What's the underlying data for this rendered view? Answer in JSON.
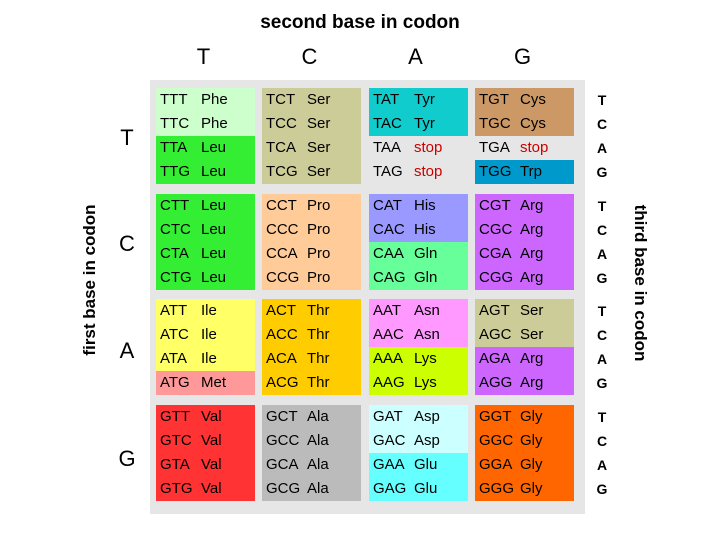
{
  "header": {
    "title": "second base in codon",
    "left_title": "first base in codon",
    "right_title": "third base in codon",
    "second_bases": [
      "T",
      "C",
      "A",
      "G"
    ],
    "first_bases": [
      "T",
      "C",
      "A",
      "G"
    ],
    "third_bases": [
      "T",
      "C",
      "A",
      "G"
    ]
  },
  "colors": {
    "grid_background": "#e6e6e6",
    "stop_text": "#cc0000"
  },
  "rows": [
    {
      "first": "T",
      "blocks": [
        {
          "cells": [
            {
              "codon": "TTT",
              "aa": "Phe",
              "bg": "#ccffcc"
            },
            {
              "codon": "TTC",
              "aa": "Phe",
              "bg": "#ccffcc"
            },
            {
              "codon": "TTA",
              "aa": "Leu",
              "bg": "#33ee33"
            },
            {
              "codon": "TTG",
              "aa": "Leu",
              "bg": "#33ee33"
            }
          ]
        },
        {
          "cells": [
            {
              "codon": "TCT",
              "aa": "Ser",
              "bg": "#cccc99"
            },
            {
              "codon": "TCC",
              "aa": "Ser",
              "bg": "#cccc99"
            },
            {
              "codon": "TCA",
              "aa": "Ser",
              "bg": "#cccc99"
            },
            {
              "codon": "TCG",
              "aa": "Ser",
              "bg": "#cccc99"
            }
          ]
        },
        {
          "cells": [
            {
              "codon": "TAT",
              "aa": "Tyr",
              "bg": "#11cccc"
            },
            {
              "codon": "TAC",
              "aa": "Tyr",
              "bg": "#11cccc"
            },
            {
              "codon": "TAA",
              "aa": "stop",
              "bg": "#e6e6e6",
              "stop": true
            },
            {
              "codon": "TAG",
              "aa": "stop",
              "bg": "#e6e6e6",
              "stop": true
            }
          ]
        },
        {
          "cells": [
            {
              "codon": "TGT",
              "aa": "Cys",
              "bg": "#cc9966"
            },
            {
              "codon": "TGC",
              "aa": "Cys",
              "bg": "#cc9966"
            },
            {
              "codon": "TGA",
              "aa": "stop",
              "bg": "#e6e6e6",
              "stop": true
            },
            {
              "codon": "TGG",
              "aa": "Trp",
              "bg": "#0099cc"
            }
          ]
        }
      ]
    },
    {
      "first": "C",
      "blocks": [
        {
          "cells": [
            {
              "codon": "CTT",
              "aa": "Leu",
              "bg": "#33ee33"
            },
            {
              "codon": "CTC",
              "aa": "Leu",
              "bg": "#33ee33"
            },
            {
              "codon": "CTA",
              "aa": "Leu",
              "bg": "#33ee33"
            },
            {
              "codon": "CTG",
              "aa": "Leu",
              "bg": "#33ee33"
            }
          ]
        },
        {
          "cells": [
            {
              "codon": "CCT",
              "aa": "Pro",
              "bg": "#ffcc99"
            },
            {
              "codon": "CCC",
              "aa": "Pro",
              "bg": "#ffcc99"
            },
            {
              "codon": "CCA",
              "aa": "Pro",
              "bg": "#ffcc99"
            },
            {
              "codon": "CCG",
              "aa": "Pro",
              "bg": "#ffcc99"
            }
          ]
        },
        {
          "cells": [
            {
              "codon": "CAT",
              "aa": "His",
              "bg": "#9999ff"
            },
            {
              "codon": "CAC",
              "aa": "His",
              "bg": "#9999ff"
            },
            {
              "codon": "CAA",
              "aa": "Gln",
              "bg": "#66ff99"
            },
            {
              "codon": "CAG",
              "aa": "Gln",
              "bg": "#66ff99"
            }
          ]
        },
        {
          "cells": [
            {
              "codon": "CGT",
              "aa": "Arg",
              "bg": "#cc66ff"
            },
            {
              "codon": "CGC",
              "aa": "Arg",
              "bg": "#cc66ff"
            },
            {
              "codon": "CGA",
              "aa": "Arg",
              "bg": "#cc66ff"
            },
            {
              "codon": "CGG",
              "aa": "Arg",
              "bg": "#cc66ff"
            }
          ]
        }
      ]
    },
    {
      "first": "A",
      "blocks": [
        {
          "cells": [
            {
              "codon": "ATT",
              "aa": "Ile",
              "bg": "#ffff66"
            },
            {
              "codon": "ATC",
              "aa": "Ile",
              "bg": "#ffff66"
            },
            {
              "codon": "ATA",
              "aa": "Ile",
              "bg": "#ffff66"
            },
            {
              "codon": "ATG",
              "aa": "Met",
              "bg": "#ff9999"
            }
          ]
        },
        {
          "cells": [
            {
              "codon": "ACT",
              "aa": "Thr",
              "bg": "#ffcc00"
            },
            {
              "codon": "ACC",
              "aa": "Thr",
              "bg": "#ffcc00"
            },
            {
              "codon": "ACA",
              "aa": "Thr",
              "bg": "#ffcc00"
            },
            {
              "codon": "ACG",
              "aa": "Thr",
              "bg": "#ffcc00"
            }
          ]
        },
        {
          "cells": [
            {
              "codon": "AAT",
              "aa": "Asn",
              "bg": "#ff99ff"
            },
            {
              "codon": "AAC",
              "aa": "Asn",
              "bg": "#ff99ff"
            },
            {
              "codon": "AAA",
              "aa": "Lys",
              "bg": "#ccff00"
            },
            {
              "codon": "AAG",
              "aa": "Lys",
              "bg": "#ccff00"
            }
          ]
        },
        {
          "cells": [
            {
              "codon": "AGT",
              "aa": "Ser",
              "bg": "#cccc99"
            },
            {
              "codon": "AGC",
              "aa": "Ser",
              "bg": "#cccc99"
            },
            {
              "codon": "AGA",
              "aa": "Arg",
              "bg": "#cc66ff"
            },
            {
              "codon": "AGG",
              "aa": "Arg",
              "bg": "#cc66ff"
            }
          ]
        }
      ]
    },
    {
      "first": "G",
      "blocks": [
        {
          "cells": [
            {
              "codon": "GTT",
              "aa": "Val",
              "bg": "#ff3333"
            },
            {
              "codon": "GTC",
              "aa": "Val",
              "bg": "#ff3333"
            },
            {
              "codon": "GTA",
              "aa": "Val",
              "bg": "#ff3333"
            },
            {
              "codon": "GTG",
              "aa": "Val",
              "bg": "#ff3333"
            }
          ]
        },
        {
          "cells": [
            {
              "codon": "GCT",
              "aa": "Ala",
              "bg": "#bbbbbb"
            },
            {
              "codon": "GCC",
              "aa": "Ala",
              "bg": "#bbbbbb"
            },
            {
              "codon": "GCA",
              "aa": "Ala",
              "bg": "#bbbbbb"
            },
            {
              "codon": "GCG",
              "aa": "Ala",
              "bg": "#bbbbbb"
            }
          ]
        },
        {
          "cells": [
            {
              "codon": "GAT",
              "aa": "Asp",
              "bg": "#ccffff"
            },
            {
              "codon": "GAC",
              "aa": "Asp",
              "bg": "#ccffff"
            },
            {
              "codon": "GAA",
              "aa": "Glu",
              "bg": "#66ffff"
            },
            {
              "codon": "GAG",
              "aa": "Glu",
              "bg": "#66ffff"
            }
          ]
        },
        {
          "cells": [
            {
              "codon": "GGT",
              "aa": "Gly",
              "bg": "#ff6600"
            },
            {
              "codon": "GGC",
              "aa": "Gly",
              "bg": "#ff6600"
            },
            {
              "codon": "GGA",
              "aa": "Gly",
              "bg": "#ff6600"
            },
            {
              "codon": "GGG",
              "aa": "Gly",
              "bg": "#ff6600"
            }
          ]
        }
      ]
    }
  ]
}
